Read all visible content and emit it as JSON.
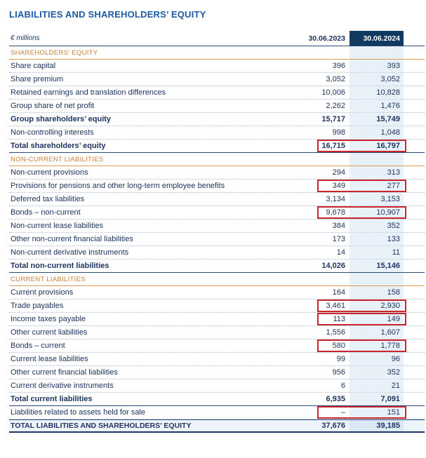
{
  "title": "LIABILITIES AND SHAREHOLDERS’ EQUITY",
  "colors": {
    "title_blue": "#1b5aa5",
    "text_navy": "#1d3560",
    "section_orange": "#c98139",
    "header_cell_navy": "#113a60",
    "column_band_blue": "#e8f0f8",
    "highlight_red": "#c9252c"
  },
  "table": {
    "unit_label": "€ millions",
    "columns": [
      "30.06.2023",
      "30.06.2024"
    ],
    "sections": [
      {
        "header": "SHAREHOLDERS’ EQUITY",
        "rows": [
          {
            "label": "Share capital",
            "v2023": "396",
            "v2024": "393",
            "bold": false,
            "total": false,
            "highlighted": false
          },
          {
            "label": "Share premium",
            "v2023": "3,052",
            "v2024": "3,052",
            "bold": false,
            "total": false,
            "highlighted": false
          },
          {
            "label": "Retained earnings and translation differences",
            "v2023": "10,006",
            "v2024": "10,828",
            "bold": false,
            "total": false,
            "highlighted": false
          },
          {
            "label": "Group share of net profit",
            "v2023": "2,262",
            "v2024": "1,476",
            "bold": false,
            "total": false,
            "highlighted": false
          },
          {
            "label": "Group shareholders’ equity",
            "v2023": "15,717",
            "v2024": "15,749",
            "bold": true,
            "total": false,
            "highlighted": false
          },
          {
            "label": "Non-controlling interests",
            "v2023": "998",
            "v2024": "1,048",
            "bold": false,
            "total": false,
            "highlighted": false
          },
          {
            "label": "Total shareholders’ equity",
            "v2023": "16,715",
            "v2024": "16,797",
            "bold": true,
            "total": true,
            "highlighted": true
          }
        ]
      },
      {
        "header": "NON-CURRENT LIABILITIES",
        "rows": [
          {
            "label": "Non-current provisions",
            "v2023": "294",
            "v2024": "313",
            "bold": false,
            "total": false,
            "highlighted": false
          },
          {
            "label": "Provisions for pensions and other long-term employee benefits",
            "v2023": "349",
            "v2024": "277",
            "bold": false,
            "total": false,
            "highlighted": true
          },
          {
            "label": "Deferred tax liabilities",
            "v2023": "3,134",
            "v2024": "3,153",
            "bold": false,
            "total": false,
            "highlighted": false
          },
          {
            "label": "Bonds – non-current",
            "v2023": "9,678",
            "v2024": "10,907",
            "bold": false,
            "total": false,
            "highlighted": true
          },
          {
            "label": "Non-current lease liabilities",
            "v2023": "384",
            "v2024": "352",
            "bold": false,
            "total": false,
            "highlighted": false
          },
          {
            "label": "Other non-current financial liabilities",
            "v2023": "173",
            "v2024": "133",
            "bold": false,
            "total": false,
            "highlighted": false
          },
          {
            "label": "Non-current derivative instruments",
            "v2023": "14",
            "v2024": "11",
            "bold": false,
            "total": false,
            "highlighted": false
          },
          {
            "label": "Total non-current liabilities",
            "v2023": "14,026",
            "v2024": "15,146",
            "bold": true,
            "total": true,
            "highlighted": false
          }
        ]
      },
      {
        "header": "CURRENT LIABILITIES",
        "rows": [
          {
            "label": "Current provisions",
            "v2023": "164",
            "v2024": "158",
            "bold": false,
            "total": false,
            "highlighted": false
          },
          {
            "label": "Trade payables",
            "v2023": "3,461",
            "v2024": "2,930",
            "bold": false,
            "total": false,
            "highlighted": true
          },
          {
            "label": "Income taxes payable",
            "v2023": "113",
            "v2024": "149",
            "bold": false,
            "total": false,
            "highlighted": true
          },
          {
            "label": "Other current liabilities",
            "v2023": "1,556",
            "v2024": "1,607",
            "bold": false,
            "total": false,
            "highlighted": false
          },
          {
            "label": "Bonds – current",
            "v2023": "580",
            "v2024": "1,778",
            "bold": false,
            "total": false,
            "highlighted": true
          },
          {
            "label": "Current lease liabilities",
            "v2023": "99",
            "v2024": "96",
            "bold": false,
            "total": false,
            "highlighted": false
          },
          {
            "label": "Other current financial liabilities",
            "v2023": "956",
            "v2024": "352",
            "bold": false,
            "total": false,
            "highlighted": false
          },
          {
            "label": "Current derivative instruments",
            "v2023": "6",
            "v2024": "21",
            "bold": false,
            "total": false,
            "highlighted": false
          },
          {
            "label": "Total current liabilities",
            "v2023": "6,935",
            "v2024": "7,091",
            "bold": true,
            "total": true,
            "highlighted": false
          }
        ]
      }
    ],
    "extra_rows": [
      {
        "label": "Liabilities related to assets held for sale",
        "v2023": "–",
        "v2024": "151",
        "bold": false,
        "total": false,
        "highlighted": true
      }
    ],
    "grand_total": {
      "label": "TOTAL LIABILITIES AND SHAREHOLDERS’ EQUITY",
      "v2023": "37,676",
      "v2024": "39,185"
    }
  }
}
